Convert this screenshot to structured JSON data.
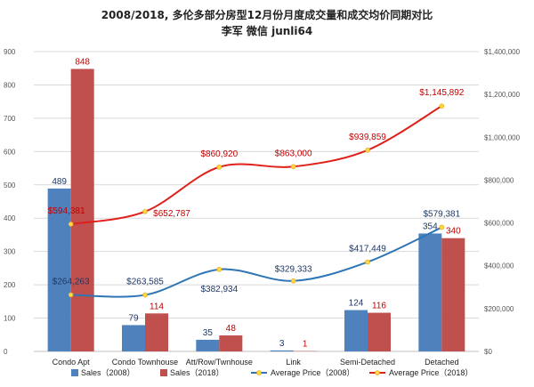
{
  "chart_data": {
    "type": "bar",
    "title": "2008/2018, 多伦多部分房型12月份月度成交量和成交均价同期对比",
    "subtitle": "李军  微信 junli64",
    "categories": [
      "Condo Apt",
      "Condo Townhouse",
      "Att/Row/Twnhouse",
      "Link",
      "Semi-Detached",
      "Detached"
    ],
    "left_axis": {
      "min": 0,
      "max": 900,
      "step": 100
    },
    "right_axis": {
      "min": 0,
      "max": 1400000,
      "step": 200000,
      "prefix": "$"
    },
    "series": [
      {
        "name": "Sales（2008）",
        "type": "bar",
        "axis": "left",
        "color": "#4f81bd",
        "values": [
          489,
          79,
          35,
          3,
          124,
          354
        ],
        "labels": [
          "489",
          "79",
          "35",
          "3",
          "124",
          "354"
        ]
      },
      {
        "name": "Sales（2018）",
        "type": "bar",
        "axis": "left",
        "color": "#c0504d",
        "values": [
          848,
          114,
          48,
          1,
          116,
          340
        ],
        "labels": [
          "848",
          "114",
          "48",
          "1",
          "116",
          "340"
        ]
      },
      {
        "name": "Average Price（2008）",
        "type": "line",
        "axis": "right",
        "color": "#2e75b6",
        "values": [
          264263,
          263585,
          382934,
          329333,
          417449,
          579381
        ],
        "labels": [
          "$264,263",
          "$263,585",
          "$382,934",
          "$329,333",
          "$417,449",
          "$579,381"
        ]
      },
      {
        "name": "Average Price（2018）",
        "type": "line",
        "axis": "right",
        "color": "#e0201b",
        "values": [
          594381,
          652787,
          860920,
          863000,
          939859,
          1145892
        ],
        "labels": [
          "$594,381",
          "$652,787",
          "$860,920",
          "$863,000",
          "$939,859",
          "$1,145,892"
        ]
      }
    ],
    "grid": true,
    "legend_position": "bottom"
  }
}
